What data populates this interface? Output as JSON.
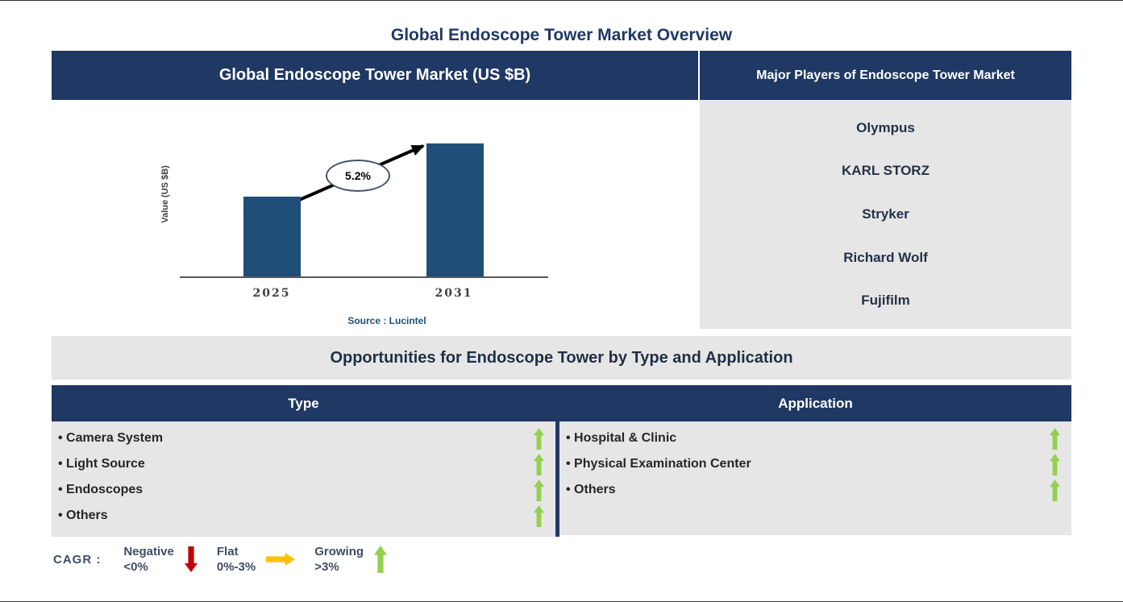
{
  "page_title": "Global Endoscope Tower Market Overview",
  "market_chart": {
    "header": "Global Endoscope Tower Market (US $B)"
  },
  "chart_data": {
    "type": "bar",
    "title": "Global Endoscope Tower Market (US $B)",
    "categories": [
      "2025",
      "2031"
    ],
    "values_relative": [
      0.6,
      1.0
    ],
    "ylabel": "Value (US $B)",
    "xlabel": "",
    "annotation": "5.2%",
    "source": "Source : Lucintel",
    "bar_color": "#1F4E79",
    "grid": false,
    "legend": false
  },
  "major_players": {
    "header": "Major Players of Endoscope Tower Market",
    "players": [
      "Olympus",
      "KARL STORZ",
      "Stryker",
      "Richard Wolf",
      "Fujifilm"
    ]
  },
  "opportunities": {
    "title": "Opportunities for Endoscope Tower by Type and Application",
    "bullet": "•",
    "type": {
      "header": "Type",
      "items": [
        {
          "label": "Camera System",
          "trend": "growing"
        },
        {
          "label": "Light Source",
          "trend": "growing"
        },
        {
          "label": "Endoscopes",
          "trend": "growing"
        },
        {
          "label": "Others",
          "trend": "growing"
        }
      ]
    },
    "application": {
      "header": "Application",
      "items": [
        {
          "label": "Hospital & Clinic",
          "trend": "growing"
        },
        {
          "label": "Physical Examination Center",
          "trend": "growing"
        },
        {
          "label": "Others",
          "trend": "growing"
        }
      ]
    }
  },
  "legend": {
    "prefix": "CAGR :",
    "entries": [
      {
        "label": "Negative",
        "range": "<0%",
        "direction": "down",
        "color": "#C00000"
      },
      {
        "label": "Flat",
        "range": "0%-3%",
        "direction": "right",
        "color": "#FFC000"
      },
      {
        "label": "Growing",
        "range": ">3%",
        "direction": "up",
        "color": "#92D050"
      }
    ]
  },
  "colors": {
    "navy": "#1F3864",
    "bar_blue": "#1F4E79",
    "panel_gray": "#E7E6E6",
    "growing_green": "#92D050",
    "negative_red": "#C00000",
    "flat_amber": "#FFC000",
    "trend_arrow_black": "#000000"
  }
}
